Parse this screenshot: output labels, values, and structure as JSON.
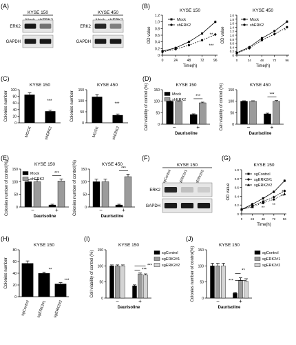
{
  "chart_data": [
    {
      "panel": "(A)",
      "type": "table",
      "blots": [
        {
          "title": "KYSE 150",
          "lanes": [
            "Mock",
            "shERK2"
          ],
          "rows": [
            "ERK2",
            "GAPDH"
          ],
          "band_intensity": [
            [
              0.9,
              0.55
            ],
            [
              0.9,
              0.9
            ]
          ]
        },
        {
          "title": "KYSE 450",
          "lanes": [
            "Mock",
            "shERK2"
          ],
          "rows": [
            "ERK2",
            "GAPDH"
          ],
          "band_intensity": [
            [
              0.85,
              0.5
            ],
            [
              0.9,
              0.9
            ]
          ]
        }
      ]
    },
    {
      "panel": "(B)",
      "type": "line",
      "subplots": [
        {
          "title": "KYSE 150",
          "xlabel": "Time(h)",
          "ylabel": "OD value",
          "x": [
            0,
            24,
            48,
            72,
            96
          ],
          "xlim": [
            0,
            100
          ],
          "ylim": [
            0,
            1.2
          ],
          "yticks": [
            "0",
            "0.2",
            "0.4",
            "0.6",
            "0.8",
            "1.0",
            "1.2"
          ],
          "series": [
            {
              "name": "Mock",
              "values": [
                0.12,
                0.22,
                0.4,
                0.65,
                1.0
              ]
            },
            {
              "name": "shERK2",
              "values": [
                0.1,
                0.18,
                0.3,
                0.45,
                0.62
              ]
            }
          ],
          "annotations": [
            "**",
            "***"
          ]
        },
        {
          "title": "KYSE 450",
          "xlabel": "Time(h)",
          "ylabel": "OD value",
          "x": [
            0,
            24,
            48,
            72,
            96
          ],
          "xlim": [
            0,
            100
          ],
          "ylim": [
            0,
            2.0
          ],
          "yticks": [
            "0",
            "0.2",
            "0.4",
            "0.6",
            "0.8",
            "1.0",
            "1.2",
            "1.4",
            "1.6",
            "1.8",
            "2.0"
          ],
          "series": [
            {
              "name": "Mock",
              "values": [
                0.12,
                0.4,
                0.85,
                1.2,
                1.68
              ]
            },
            {
              "name": "shERK2",
              "values": [
                0.1,
                0.35,
                0.75,
                1.05,
                1.4
              ]
            }
          ],
          "annotations": [
            "*"
          ]
        }
      ]
    },
    {
      "panel": "(C)",
      "type": "bar",
      "subplots": [
        {
          "title": "KYSE 150",
          "ylabel": "Colonies number",
          "categories": [
            "MOCK",
            "shERK2"
          ],
          "values": [
            85,
            35
          ],
          "errors": [
            6,
            3
          ],
          "ylim": [
            0,
            100
          ],
          "yticks": [
            "0",
            "20",
            "40",
            "60",
            "80",
            "100"
          ],
          "annotations": [
            "***"
          ]
        },
        {
          "title": "KYSE 450",
          "ylabel": "Colonies number",
          "categories": [
            "MOCK",
            "shERK2"
          ],
          "values": [
            118,
            35
          ],
          "errors": [
            10,
            5
          ],
          "ylim": [
            0,
            150
          ],
          "yticks": [
            "0",
            "50",
            "100",
            "150"
          ],
          "annotations": [
            "***"
          ]
        }
      ]
    },
    {
      "panel": "(D)",
      "type": "bar",
      "subplots": [
        {
          "title": "KYSE 150",
          "ylabel": "Cell viability of control (%)",
          "xlabel": "Daurisoline",
          "groups": [
            "−",
            "+"
          ],
          "series": [
            {
              "name": "Mock",
              "values": [
                100,
                42
              ],
              "errors": [
                2,
                3
              ]
            },
            {
              "name": "shERK2",
              "values": [
                100,
                93
              ],
              "errors": [
                2,
                3
              ]
            }
          ],
          "ylim": [
            0,
            150
          ],
          "yticks": [
            "0",
            "50",
            "100",
            "150"
          ],
          "annotations": [
            "***"
          ]
        },
        {
          "title": "KYSE 450",
          "ylabel": "Cell viability of control (%)",
          "xlabel": "Daurisoline",
          "groups": [
            "−",
            "+"
          ],
          "series": [
            {
              "name": "Mock",
              "values": [
                100,
                45
              ],
              "errors": [
                2,
                3
              ]
            },
            {
              "name": "shERK2",
              "values": [
                100,
                100
              ],
              "errors": [
                2,
                3
              ]
            }
          ],
          "ylim": [
            0,
            150
          ],
          "yticks": [
            "0",
            "50",
            "100",
            "150"
          ],
          "annotations": [
            "***"
          ]
        }
      ]
    },
    {
      "panel": "(E)",
      "type": "bar",
      "subplots": [
        {
          "title": "KYSE 150",
          "ylabel": "Colonies number of control(%)",
          "xlabel": "Daurisoline",
          "groups": [
            "−",
            "+"
          ],
          "series": [
            {
              "name": "Mock",
              "values": [
                100,
                8
              ],
              "errors": [
                8,
                3
              ]
            },
            {
              "name": "shERK2",
              "values": [
                100,
                103
              ],
              "errors": [
                8,
                8
              ]
            }
          ],
          "ylim": [
            0,
            150
          ],
          "yticks": [
            "0",
            "50",
            "100",
            "150"
          ],
          "annotations": [
            "***"
          ]
        },
        {
          "title": "KYSE 450",
          "ylabel": "Colonies number of control(%)",
          "xlabel": "Daurisoline",
          "groups": [
            "−",
            "+"
          ],
          "series": [
            {
              "name": "Mock",
              "values": [
                100,
                8
              ],
              "errors": [
                10,
                3
              ]
            },
            {
              "name": "shERK2",
              "values": [
                100,
                120
              ],
              "errors": [
                10,
                10
              ]
            }
          ],
          "ylim": [
            0,
            150
          ],
          "yticks": [
            "0",
            "50",
            "100",
            "150"
          ],
          "annotations": [
            "***"
          ]
        }
      ]
    },
    {
      "panel": "(F)",
      "type": "table",
      "blots": [
        {
          "title": "KYSE 150",
          "lanes": [
            "sgControl",
            "sgERK2#1",
            "sgERK2#2"
          ],
          "rows": [
            "ERK2",
            "GAPDH"
          ],
          "band_intensity": [
            [
              0.85,
              0.25,
              0.2
            ],
            [
              0.9,
              0.9,
              0.9
            ]
          ]
        }
      ]
    },
    {
      "panel": "(G)",
      "type": "line",
      "subplots": [
        {
          "title": "KYSE 150",
          "xlabel": "Time(h)",
          "ylabel": "OD value",
          "x": [
            0,
            24,
            48,
            72,
            96
          ],
          "xlim": [
            0,
            100
          ],
          "ylim": [
            0,
            1.0
          ],
          "yticks": [
            "0",
            "0.2",
            "0.4",
            "0.6",
            "0.8",
            "1.0"
          ],
          "series": [
            {
              "name": "sgControl",
              "values": [
                0.1,
                0.22,
                0.35,
                0.5,
                0.75
              ]
            },
            {
              "name": "sgERK2#1",
              "values": [
                0.1,
                0.18,
                0.28,
                0.38,
                0.52
              ]
            },
            {
              "name": "sgERK2#2",
              "values": [
                0.1,
                0.16,
                0.25,
                0.33,
                0.45
              ]
            }
          ],
          "annotations": [
            "**",
            "**",
            "**",
            "**",
            "**",
            "**",
            "*"
          ]
        }
      ]
    },
    {
      "panel": "(H)",
      "type": "bar",
      "subplots": [
        {
          "title": "KYSE 150",
          "ylabel": "Colonies number",
          "categories": [
            "sgControl",
            "sgERK2#1",
            "sgERK2#2"
          ],
          "values": [
            57,
            40,
            22
          ],
          "errors": [
            4,
            2,
            2
          ],
          "ylim": [
            0,
            80
          ],
          "yticks": [
            "0",
            "20",
            "40",
            "60",
            "80"
          ],
          "annotations": [
            "**",
            "***"
          ]
        }
      ]
    },
    {
      "panel": "(I)",
      "type": "bar",
      "subplots": [
        {
          "title": "KYSE 150",
          "ylabel": "Cell viability of control (%)",
          "xlabel": "Daurisoline",
          "groups": [
            "−",
            "+"
          ],
          "series": [
            {
              "name": "sgControl",
              "values": [
                100,
                38
              ],
              "errors": [
                3,
                3
              ]
            },
            {
              "name": "sgERK2#1",
              "values": [
                100,
                75
              ],
              "errors": [
                3,
                3
              ]
            },
            {
              "name": "sgERK2#2",
              "values": [
                100,
                72
              ],
              "errors": [
                3,
                3
              ]
            }
          ],
          "ylim": [
            0,
            150
          ],
          "yticks": [
            "0",
            "50",
            "100",
            "150"
          ],
          "annotations": [
            "***",
            "***"
          ]
        }
      ]
    },
    {
      "panel": "(J)",
      "type": "bar",
      "subplots": [
        {
          "title": "KYSE 150",
          "ylabel": "Colonies number of control(%)",
          "xlabel": "Daurisoline",
          "groups": [
            "−",
            "+"
          ],
          "series": [
            {
              "name": "sgControl",
              "values": [
                100,
                15
              ],
              "errors": [
                8,
                3
              ]
            },
            {
              "name": "sgERK2#1",
              "values": [
                100,
                55
              ],
              "errors": [
                8,
                8
              ]
            },
            {
              "name": "sgERK2#2",
              "values": [
                100,
                52
              ],
              "errors": [
                8,
                8
              ]
            }
          ],
          "ylim": [
            0,
            150
          ],
          "yticks": [
            "0",
            "50",
            "100",
            "150"
          ],
          "annotations": [
            "**",
            "***"
          ]
        }
      ]
    }
  ]
}
